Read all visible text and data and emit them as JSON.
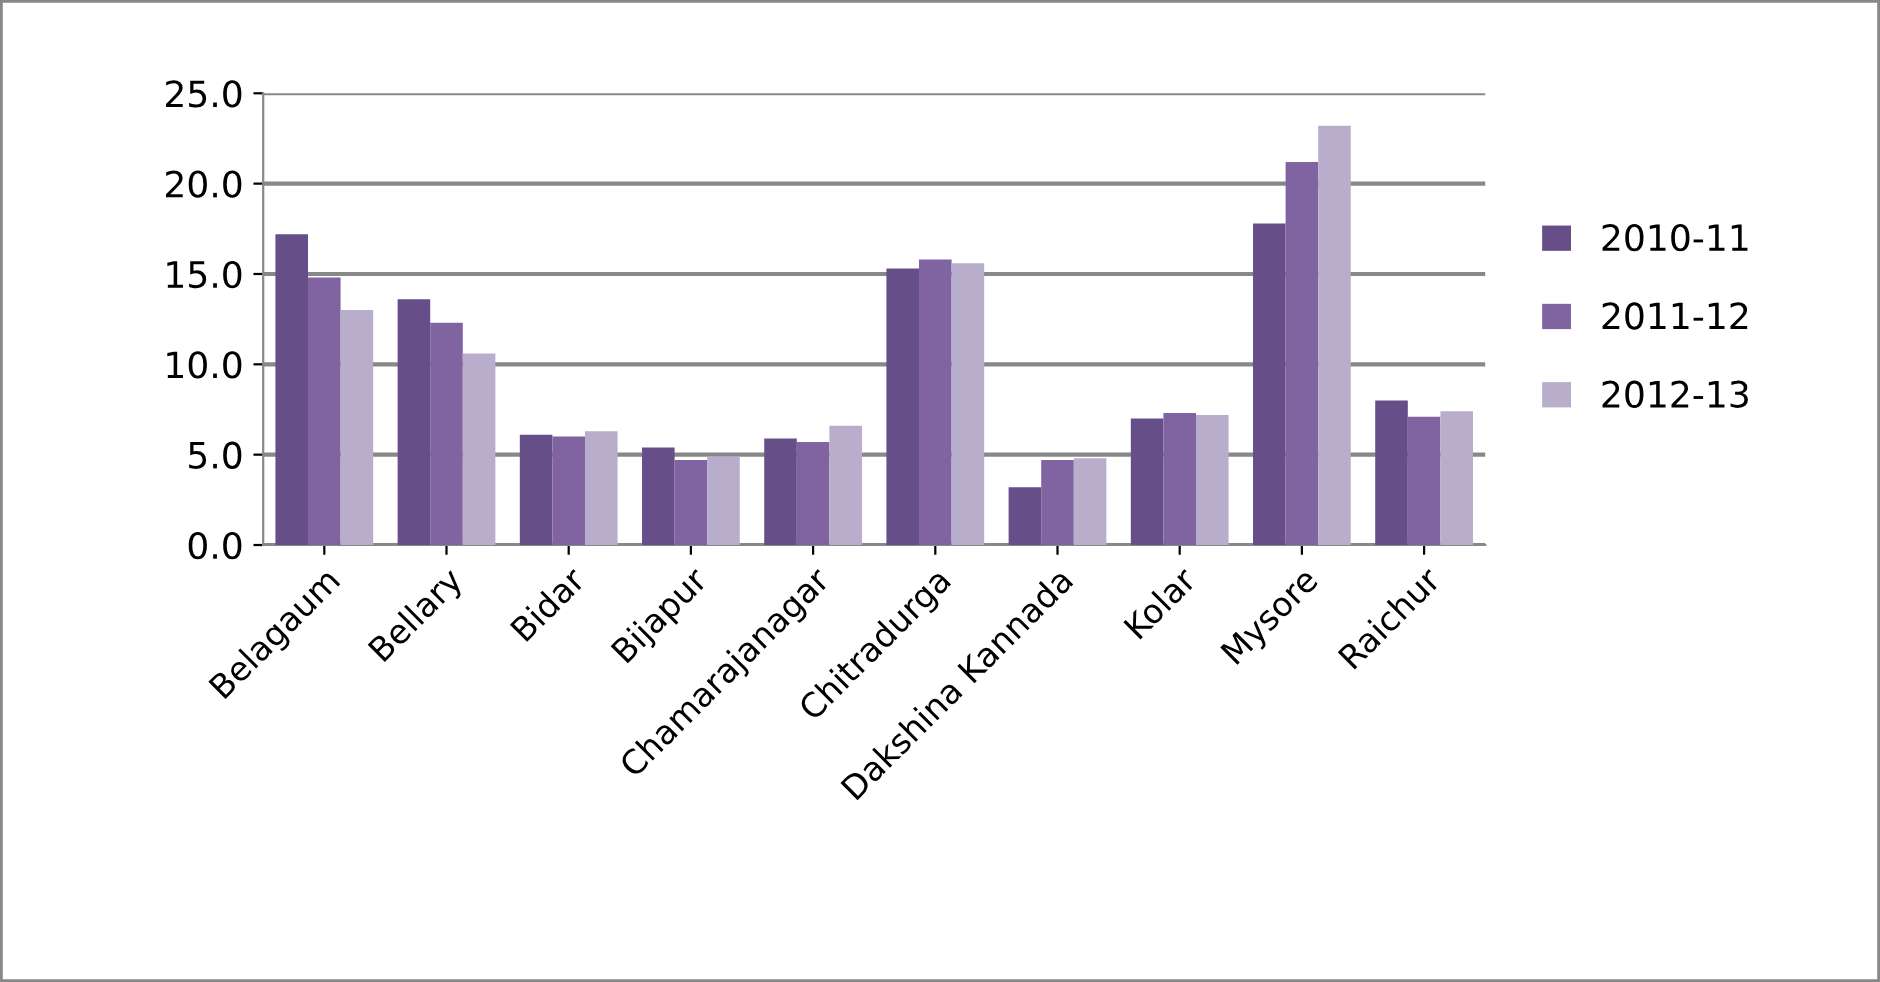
{
  "chart_data": {
    "type": "bar",
    "categories": [
      "Belagaum",
      "Bellary",
      "Bidar",
      "Bijapur",
      "Chamarajanagar",
      "Chitradurga",
      "Dakshina Kannada",
      "Kolar",
      "Mysore",
      "Raichur"
    ],
    "series": [
      {
        "name": "2010-11",
        "color": "#664e88",
        "values": [
          17.2,
          13.6,
          6.1,
          5.4,
          5.9,
          15.3,
          3.2,
          7.0,
          17.8,
          8.0
        ]
      },
      {
        "name": "2011-12",
        "color": "#8064a2",
        "values": [
          14.8,
          12.3,
          6.0,
          4.7,
          5.7,
          15.8,
          4.7,
          7.3,
          21.2,
          7.1
        ]
      },
      {
        "name": "2012-13",
        "color": "#b8aecc",
        "values": [
          13.0,
          10.6,
          6.3,
          4.9,
          6.6,
          15.6,
          4.8,
          7.2,
          23.2,
          7.4
        ]
      }
    ],
    "ylim": [
      0,
      25
    ],
    "yticks": [
      {
        "value": 0,
        "label": "0.0"
      },
      {
        "value": 5,
        "label": "5.0"
      },
      {
        "value": 10,
        "label": "10.0"
      },
      {
        "value": 15,
        "label": "15.0"
      },
      {
        "value": 20,
        "label": "20.0"
      },
      {
        "value": 25,
        "label": "25.0"
      }
    ],
    "grid": "y",
    "legend": "right"
  }
}
